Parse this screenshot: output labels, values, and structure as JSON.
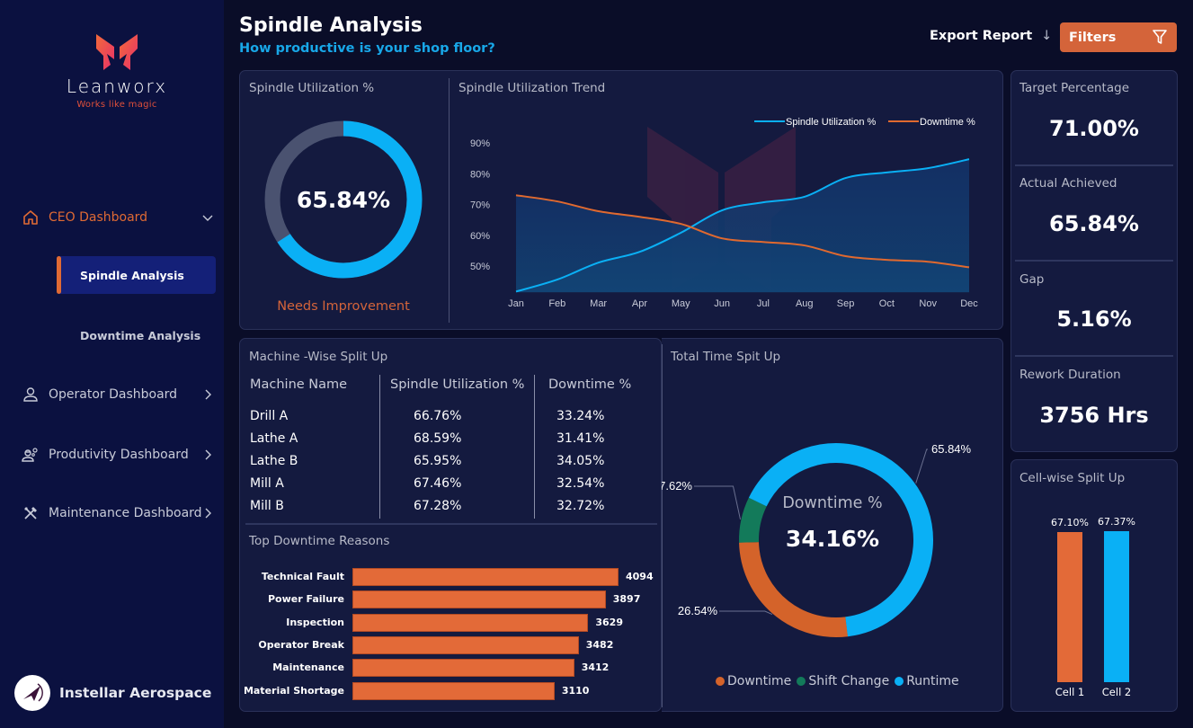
{
  "brand": {
    "name": "Leanworx",
    "tagline": "Works like magic"
  },
  "sidebar": {
    "items": [
      {
        "label": "CEO Dashboard",
        "icon": "home-icon",
        "expanded": true,
        "children": [
          {
            "label": "Spindle Analysis",
            "active": true
          },
          {
            "label": "Downtime Analysis",
            "active": false
          }
        ]
      },
      {
        "label": "Operator Dashboard",
        "icon": "user-icon"
      },
      {
        "label": "Produtivity Dashboard",
        "icon": "worker-gear-icon"
      },
      {
        "label": "Maintenance Dashboard",
        "icon": "tools-icon"
      }
    ],
    "company": "Instellar Aerospace"
  },
  "header": {
    "title": "Spindle Analysis",
    "subtitle": "How productive is your shop floor?",
    "export_label": "Export Report",
    "export_icon": "↓",
    "filters_label": "Filters"
  },
  "colors": {
    "accent_orange": "#e36a38",
    "accent_blue": "#0ab0f5",
    "shift_green": "#137a5a",
    "track_gray": "#4a5270"
  },
  "utilization_gauge": {
    "title": "Spindle Utilization %",
    "value_label": "65.84%",
    "value": 65.84,
    "status": "Needs Improvement"
  },
  "kpis": [
    {
      "label": "Target Percentage",
      "value": "71.00%"
    },
    {
      "label": "Actual Achieved",
      "value": "65.84%"
    },
    {
      "label": "Gap",
      "value": "5.16%"
    },
    {
      "label": "Rework Duration",
      "value": "3756 Hrs"
    }
  ],
  "machine_table": {
    "title": "Machine -Wise Split Up",
    "columns": [
      "Machine Name",
      "Spindle Utilization %",
      "Downtime %"
    ],
    "rows": [
      [
        "Drill A",
        "66.76%",
        "33.24%"
      ],
      [
        "Lathe A",
        "68.59%",
        "31.41%"
      ],
      [
        "Lathe B",
        "65.95%",
        "34.05%"
      ],
      [
        "Mill A",
        "67.46%",
        "32.54%"
      ],
      [
        "Mill B",
        "67.28%",
        "32.72%"
      ]
    ]
  },
  "chart_data": [
    {
      "type": "area",
      "title": "Spindle Utilization Trend",
      "categories": [
        "Jan",
        "Feb",
        "Mar",
        "Apr",
        "May",
        "Jun",
        "Jul",
        "Aug",
        "Sep",
        "Oct",
        "Nov",
        "Dec"
      ],
      "series": [
        {
          "name": "Spindle Utilization %",
          "color": "#0ab0f5",
          "values": [
            41.7,
            45.6,
            51.1,
            54.6,
            60.8,
            68.1,
            70.7,
            72.5,
            78.6,
            80.4,
            81.8,
            84.7
          ]
        },
        {
          "name": "Downtime %",
          "color": "#e0692f",
          "values": [
            73.0,
            71.0,
            67.8,
            66.0,
            63.7,
            59.0,
            57.8,
            56.7,
            53.2,
            52.0,
            51.4,
            49.6
          ]
        }
      ],
      "yticks": [
        "50%",
        "60%",
        "70%",
        "80%",
        "90%"
      ],
      "ytick_values": [
        50,
        60,
        70,
        80,
        90
      ],
      "ylim": [
        41.5,
        90
      ],
      "legend": "top-right",
      "grid": false
    },
    {
      "type": "bar",
      "orientation": "horizontal",
      "title": "Top Downtime Reasons",
      "categories": [
        "Technical Fault",
        "Power Failure",
        "Inspection",
        "Operator Break",
        "Maintenance",
        "Material Shortage"
      ],
      "values": [
        4094,
        3897,
        3629,
        3482,
        3412,
        3110
      ],
      "xlim": [
        0,
        4094
      ]
    },
    {
      "type": "pie",
      "title": "Total Time Spit Up",
      "center_label": "Downtime %",
      "center_value": "34.16%",
      "slices": [
        {
          "name": "Downtime",
          "value": 26.54,
          "label": "26.54%",
          "color": "#d4632a"
        },
        {
          "name": "Shift Change",
          "value": 7.62,
          "label": "7.62%",
          "color": "#137a5a"
        },
        {
          "name": "Runtime",
          "value": 65.84,
          "label": "65.84%",
          "color": "#0ab0f5"
        }
      ],
      "legend": "bottom"
    },
    {
      "type": "bar",
      "title": "Cell-wise Split Up",
      "categories": [
        "Cell 1",
        "Cell 2"
      ],
      "values": [
        67.1,
        67.37
      ],
      "labels": [
        "67.10%",
        "67.37%"
      ],
      "colors": [
        "#e36a38",
        "#0ab0f5"
      ]
    }
  ]
}
